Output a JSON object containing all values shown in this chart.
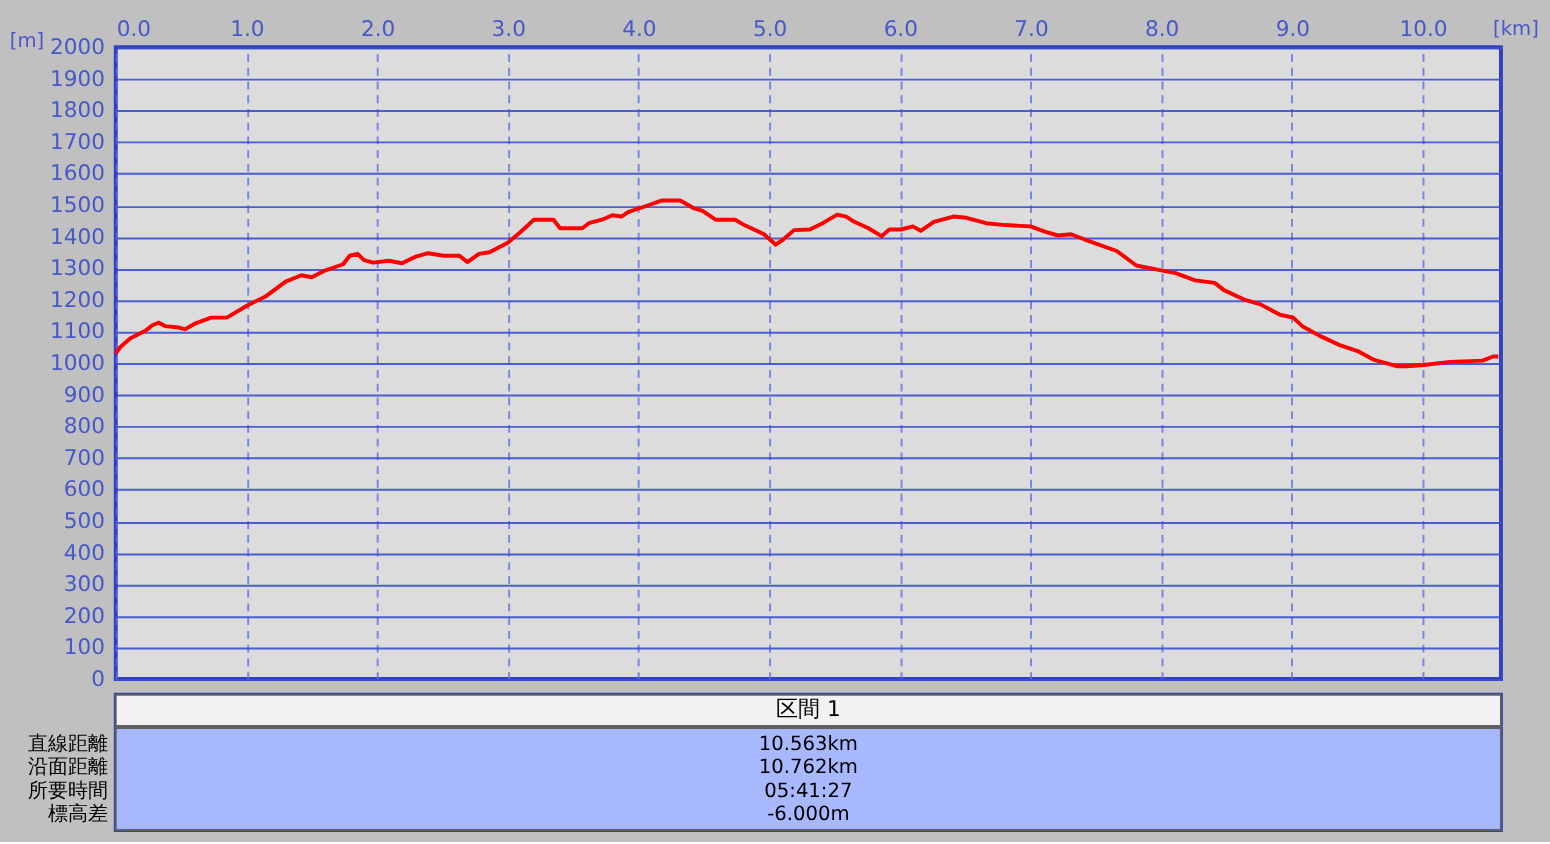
{
  "chart_data": {
    "type": "line",
    "xlabel": "[km]",
    "ylabel": "[m]",
    "x": [
      0,
      0.035,
      0.11,
      0.18,
      0.23,
      0.28,
      0.33,
      0.38,
      0.48,
      0.53,
      0.6,
      0.73,
      0.85,
      1.0,
      1.15,
      1.3,
      1.42,
      1.5,
      1.6,
      1.74,
      1.79,
      1.85,
      1.9,
      1.97,
      2.09,
      2.19,
      2.29,
      2.39,
      2.51,
      2.63,
      2.69,
      2.78,
      2.86,
      3.0,
      3.1,
      3.2,
      3.35,
      3.4,
      3.57,
      3.62,
      3.72,
      3.8,
      3.87,
      3.92,
      4.07,
      4.18,
      4.32,
      4.42,
      4.49,
      4.59,
      4.74,
      4.81,
      4.96,
      5.05,
      5.11,
      5.19,
      5.31,
      5.41,
      5.52,
      5.59,
      5.64,
      5.76,
      5.86,
      5.92,
      6.01,
      6.1,
      6.16,
      6.26,
      6.41,
      6.51,
      6.66,
      6.81,
      7.0,
      7.11,
      7.21,
      7.31,
      7.41,
      7.66,
      7.81,
      8.01,
      8.11,
      8.26,
      8.41,
      8.48,
      8.63,
      8.76,
      8.91,
      9.01,
      9.08,
      9.21,
      9.36,
      9.51,
      9.63,
      9.81,
      9.88,
      10.01,
      10.21,
      10.46,
      10.54,
      10.58
    ],
    "series": [
      {
        "color": "#ff0000",
        "values": [
          1031,
          1051,
          1078,
          1093,
          1103,
          1120,
          1128,
          1117,
          1113,
          1107,
          1124,
          1144,
          1144,
          1181,
          1212,
          1258,
          1278,
          1272,
          1293,
          1313,
          1340,
          1346,
          1326,
          1318,
          1324,
          1316,
          1336,
          1348,
          1340,
          1340,
          1320,
          1346,
          1351,
          1381,
          1416,
          1454,
          1454,
          1427,
          1427,
          1443,
          1454,
          1468,
          1464,
          1478,
          1499,
          1515,
          1515,
          1491,
          1482,
          1454,
          1454,
          1437,
          1408,
          1375,
          1392,
          1421,
          1423,
          1443,
          1470,
          1464,
          1450,
          1427,
          1402,
          1423,
          1423,
          1433,
          1419,
          1447,
          1464,
          1460,
          1443,
          1437,
          1433,
          1416,
          1404,
          1408,
          1392,
          1355,
          1309,
          1293,
          1285,
          1262,
          1254,
          1231,
          1202,
          1186,
          1153,
          1144,
          1117,
          1087,
          1058,
          1037,
          1010,
          990,
          990,
          994,
          1004,
          1008,
          1021,
          1021
        ]
      }
    ],
    "xlim": [
      0,
      10.6
    ],
    "xticks": [
      {
        "value": 0,
        "label": "0.0"
      },
      {
        "value": 1,
        "label": "1.0"
      },
      {
        "value": 2,
        "label": "2.0"
      },
      {
        "value": 3,
        "label": "3.0"
      },
      {
        "value": 4,
        "label": "4.0"
      },
      {
        "value": 5,
        "label": "5.0"
      },
      {
        "value": 6,
        "label": "6.0"
      },
      {
        "value": 7,
        "label": "7.0"
      },
      {
        "value": 8,
        "label": "8.0"
      },
      {
        "value": 9,
        "label": "9.0"
      },
      {
        "value": 10,
        "label": "10.0"
      }
    ],
    "ylim": [
      0,
      2000
    ],
    "yticks": [
      0,
      100,
      200,
      300,
      400,
      500,
      600,
      700,
      800,
      900,
      1000,
      1100,
      1200,
      1300,
      1400,
      1500,
      1600,
      1700,
      1800,
      1900,
      2000
    ],
    "grid": true,
    "marker": "none",
    "line_style": "solid",
    "annotations": [
      "区間 1",
      "直線距離",
      "10.563km",
      "沿面距離",
      "10.762km",
      "所要時間",
      "05:41:27",
      "標高差",
      "-6.000m"
    ]
  }
}
